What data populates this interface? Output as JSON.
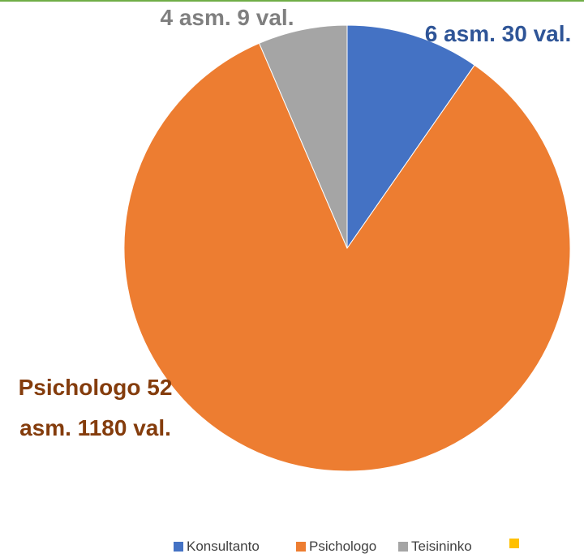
{
  "chart_data": {
    "type": "pie",
    "categories": [
      "Konsultanto",
      "Psichologo",
      "Teisininko",
      null
    ],
    "values": [
      6,
      52,
      4,
      0
    ],
    "value_labels": [
      "6 asm. 30 val.",
      "Psichologo 52 asm. 1180 val.",
      "4 asm. 9 val.",
      null
    ],
    "colors": [
      "#4472c4",
      "#ed7d31",
      "#a5a5a5",
      "#ffc000"
    ],
    "label_colors": [
      "#2f5597",
      "#843c0c",
      "#7f7f7f",
      "#bf9000"
    ],
    "legend": "bottom"
  }
}
